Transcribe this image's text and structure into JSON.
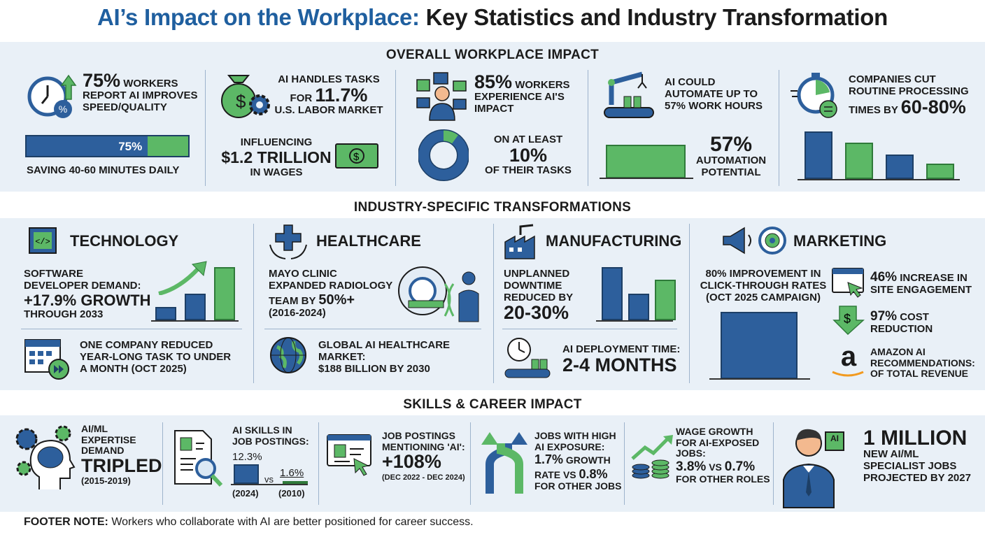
{
  "title": {
    "part1": "AI’s Impact on the Workplace:",
    "part2": "Key Statistics and Industry Transformation"
  },
  "colors": {
    "blue": "#2d5f9c",
    "green": "#5cb866",
    "title_blue": "#1f5f9f",
    "band": "#e9f0f7"
  },
  "overall": {
    "heading": "OVERALL WORKPLACE IMPACT",
    "speed": {
      "big": "75%",
      "text1": "WORKERS",
      "text2": "REPORT AI IMPROVES",
      "text3": "SPEED/QUALITY",
      "bar_label": "75%",
      "bar_percent": 75,
      "caption": "SAVING 40-60 MINUTES DAILY"
    },
    "labor": {
      "line1": "AI HANDLES TASKS",
      "for": "FOR",
      "big": "11.7%",
      "line3": "U.S. LABOR MARKET",
      "inf1": "INFLUENCING",
      "inf2": "$1.2 TRILLION",
      "inf3": "IN WAGES"
    },
    "experience": {
      "big": "85%",
      "text1": "WORKERS",
      "text2": "EXPERIENCE AI'S",
      "text3": "IMPACT",
      "l1": "ON AT LEAST",
      "big2": "10%",
      "l3": "OF THEIR TASKS",
      "donut_percent": 10
    },
    "automate": {
      "l1": "AI COULD",
      "l2": "AUTOMATE UP TO",
      "l3": "57% WORK HOURS",
      "big": "57%",
      "c1": "AUTOMATION",
      "c2": "POTENTIAL"
    },
    "processing": {
      "l1": "COMPANIES CUT",
      "l2": "ROUTINE PROCESSING",
      "l3": "TIMES BY",
      "big": "60-80%",
      "bars": [
        100,
        76,
        52,
        32
      ]
    }
  },
  "industry": {
    "heading": "INDUSTRY-SPECIFIC TRANSFORMATIONS",
    "technology": {
      "name": "TECHNOLOGY",
      "l1": "SOFTWARE",
      "l2": "DEVELOPER DEMAND:",
      "big": "+17.9% GROWTH",
      "l4": "THROUGH 2033",
      "bars": [
        25,
        50,
        100
      ],
      "s1": "ONE COMPANY REDUCED",
      "s2": "YEAR-LONG TASK TO UNDER",
      "s3": "A MONTH (OCT 2025)"
    },
    "healthcare": {
      "name": "HEALTHCARE",
      "l1": "MAYO CLINIC",
      "l2": "EXPANDED RADIOLOGY",
      "l3a": "TEAM BY",
      "l3b": "50%+",
      "l4": "(2016-2024)",
      "s1": "GLOBAL AI HEALTHCARE",
      "s2": "MARKET:",
      "s3": "$188 BILLION BY 2030"
    },
    "manufacturing": {
      "name": "MANUFACTURING",
      "l1": "UNPLANNED",
      "l2": "DOWNTIME",
      "l3": "REDUCED BY",
      "big": "20-30%",
      "bars": [
        100,
        50,
        76
      ],
      "s1": "AI DEPLOYMENT TIME:",
      "s2": "2-4 MONTHS"
    },
    "marketing": {
      "name": "MARKETING",
      "ctr1": "80% IMPROVEMENT IN",
      "ctr2": "CLICK-THROUGH RATES",
      "ctr3": "(OCT 2025 CAMPAIGN)",
      "e_big": "46%",
      "e1": "INCREASE IN",
      "e2": "SITE ENGAGEMENT",
      "c_big": "97%",
      "c1": "COST",
      "c2": "REDUCTION",
      "a1": "AMAZON AI",
      "a2": "RECOMMENDATIONS:",
      "a3": "OF TOTAL REVENUE",
      "amazon_logo": "a"
    }
  },
  "skills": {
    "heading": "SKILLS & CAREER IMPACT",
    "aiml": {
      "l1": "AI/ML",
      "l2": "EXPERTISE",
      "l3": "DEMAND",
      "big": "TRIPLED",
      "l5": "(2015-2019)"
    },
    "postings": {
      "l1": "AI SKILLS IN",
      "l2": "JOB POSTINGS:",
      "v1": "12.3%",
      "vs": "vs",
      "v2": "1.6%",
      "y1": "(2024)",
      "y2": "(2010)",
      "values": [
        12.3,
        1.6
      ]
    },
    "mentioning": {
      "l1": "JOB POSTINGS",
      "l2": "MENTIONING 'AI':",
      "big": "+108%",
      "l4": "(DEC 2022 - DEC 2024)"
    },
    "exposure": {
      "l1": "JOBS WITH HIGH",
      "l2": "AI EXPOSURE:",
      "v1": "1.7%",
      "g": "GROWTH",
      "l4a": "RATE vs",
      "v2": "0.8%",
      "l5": "FOR OTHER JOBS"
    },
    "wage": {
      "l1": "WAGE GROWTH",
      "l2": "FOR AI-EXPOSED",
      "l3": "JOBS:",
      "v1": "3.8%",
      "vs": "vs",
      "v2": "0.7%",
      "l5": "FOR OTHER ROLES"
    },
    "million": {
      "big": "1 MILLION",
      "l2": "NEW AI/ML",
      "l3": "SPECIALIST JOBS",
      "l4": "PROJECTED BY 2027",
      "chip": "AI"
    }
  },
  "footer": {
    "label": "FOOTER NOTE:",
    "text": "Workers who collaborate with AI are better positioned for career success."
  }
}
